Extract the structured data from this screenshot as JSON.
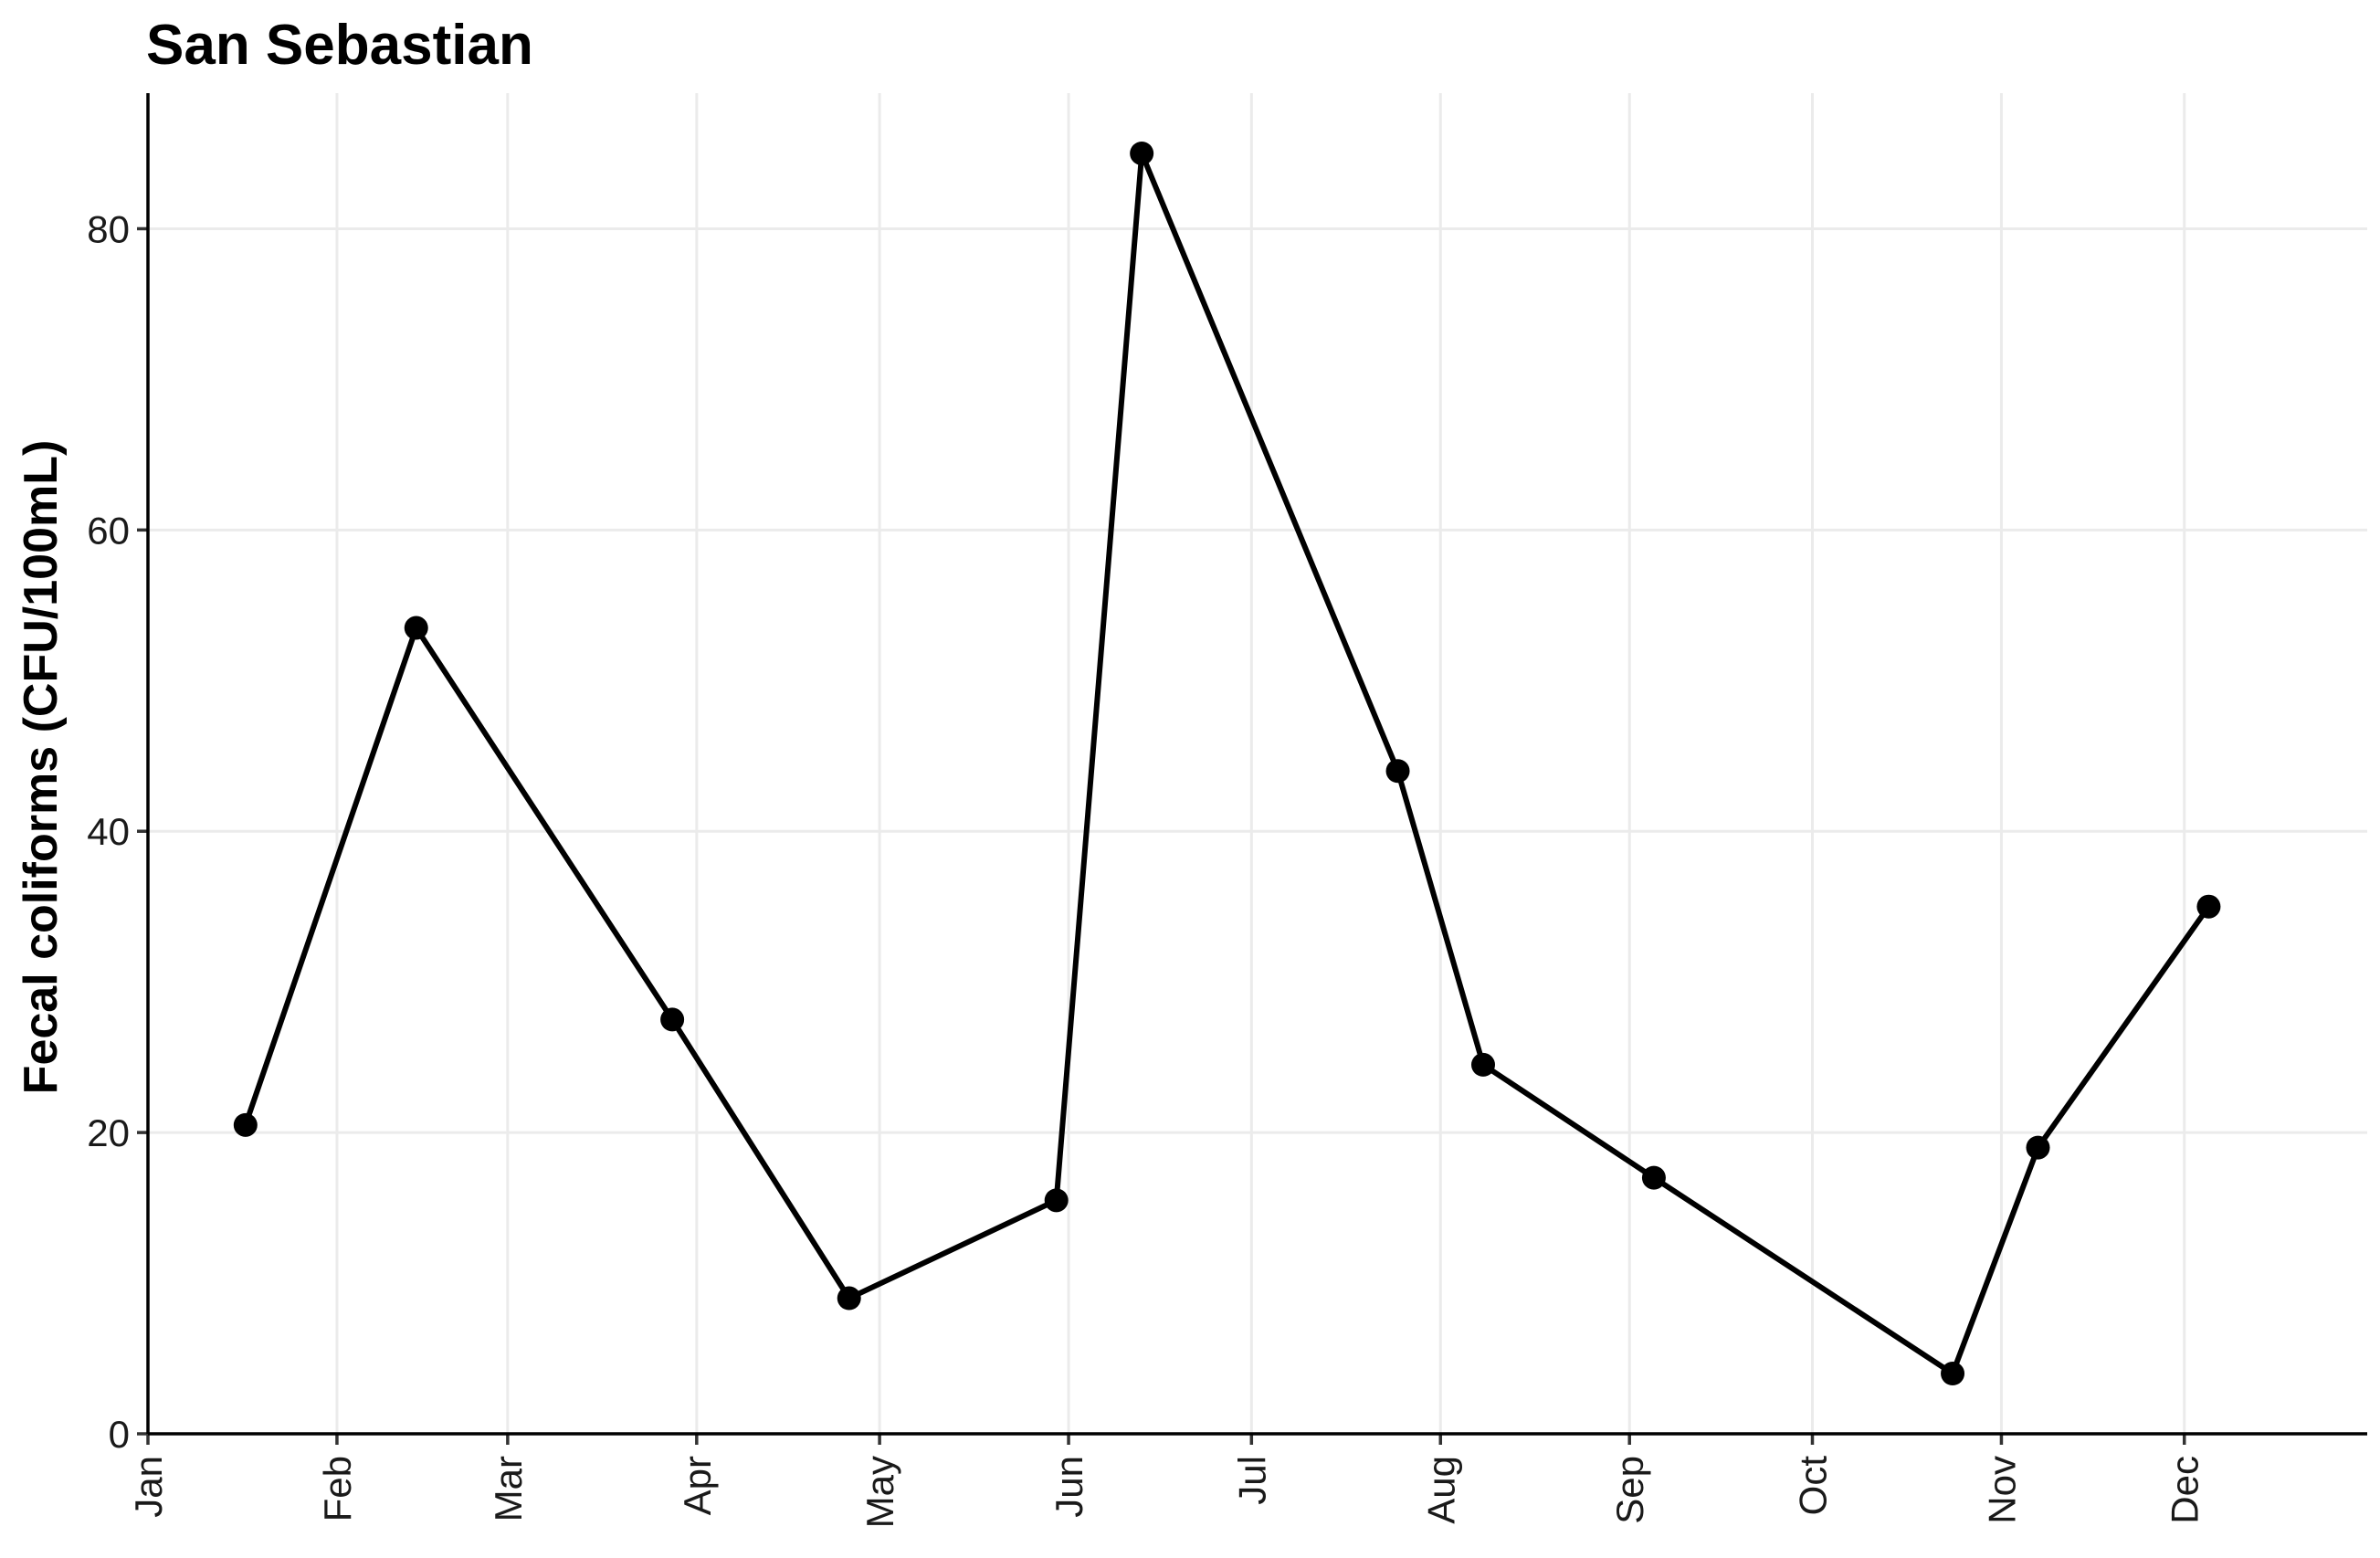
{
  "chart_data": {
    "type": "line",
    "title": "San Sebastian",
    "xlabel": "",
    "ylabel": "Fecal coliforms (CFU/100mL)",
    "ylim": [
      0,
      89
    ],
    "xlim": [
      "2017-01-01",
      "2017-12-31"
    ],
    "y_ticks": [
      0,
      20,
      40,
      60,
      80
    ],
    "x_ticks": [
      {
        "label": "Jan",
        "date": "2017-01-01"
      },
      {
        "label": "Feb",
        "date": "2017-02-01"
      },
      {
        "label": "Mar",
        "date": "2017-03-01"
      },
      {
        "label": "Apr",
        "date": "2017-04-01"
      },
      {
        "label": "May",
        "date": "2017-05-01"
      },
      {
        "label": "Jun",
        "date": "2017-06-01"
      },
      {
        "label": "Jul",
        "date": "2017-07-01"
      },
      {
        "label": "Aug",
        "date": "2017-08-01"
      },
      {
        "label": "Sep",
        "date": "2017-09-01"
      },
      {
        "label": "Oct",
        "date": "2017-10-01"
      },
      {
        "label": "Nov",
        "date": "2017-11-01"
      },
      {
        "label": "Dec",
        "date": "2017-12-01"
      }
    ],
    "grid": true,
    "series": [
      {
        "color": "#000000",
        "points": [
          {
            "x": "2017-01-17",
            "y": 20.5
          },
          {
            "x": "2017-02-14",
            "y": 53.5
          },
          {
            "x": "2017-03-28",
            "y": 27.5
          },
          {
            "x": "2017-04-26",
            "y": 9
          },
          {
            "x": "2017-05-30",
            "y": 15.5
          },
          {
            "x": "2017-06-13",
            "y": 85
          },
          {
            "x": "2017-07-25",
            "y": 44
          },
          {
            "x": "2017-08-08",
            "y": 24.5
          },
          {
            "x": "2017-09-05",
            "y": 17
          },
          {
            "x": "2017-10-24",
            "y": 4
          },
          {
            "x": "2017-11-07",
            "y": 19
          },
          {
            "x": "2017-12-05",
            "y": 35
          }
        ]
      }
    ]
  }
}
